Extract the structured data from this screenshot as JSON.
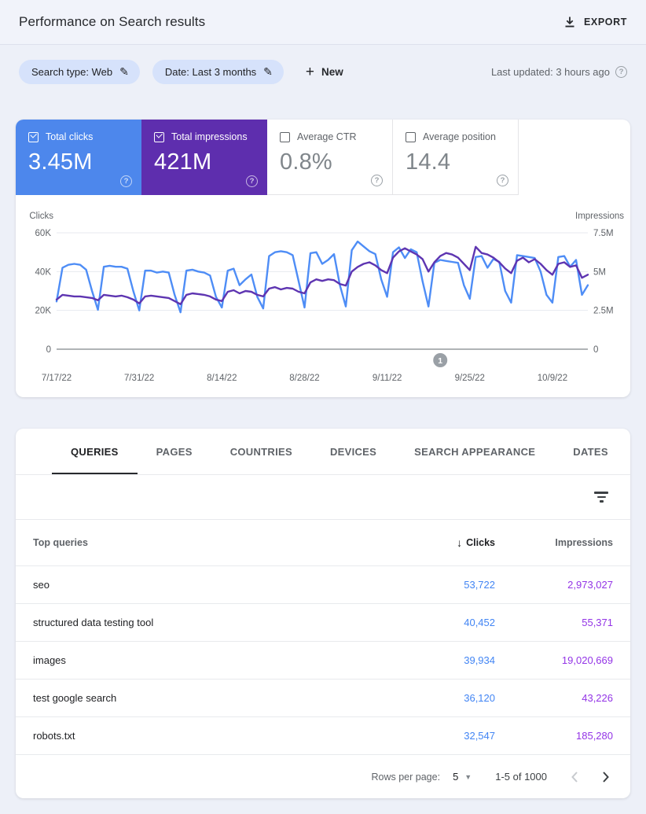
{
  "header": {
    "title": "Performance on Search results",
    "export_label": "EXPORT"
  },
  "filters": {
    "chips": [
      {
        "label": "Search type: Web"
      },
      {
        "label": "Date: Last 3 months"
      }
    ],
    "new_label": "New",
    "last_updated": "Last updated: 3 hours ago"
  },
  "icons": {
    "pencil": "✎",
    "plus": "+",
    "help": "?",
    "sort_desc": "↓",
    "dropdown_caret": "▼"
  },
  "metrics": {
    "cards": [
      {
        "label": "Total clicks",
        "value": "3.45M",
        "checked": "true",
        "color": "#4d87ec"
      },
      {
        "label": "Total impressions",
        "value": "421M",
        "checked": "true",
        "color": "#5e2eae"
      },
      {
        "label": "Average CTR",
        "value": "0.8%",
        "checked": "false",
        "color": "#ffffff"
      },
      {
        "label": "Average position",
        "value": "14.4",
        "checked": "false",
        "color": "#ffffff"
      }
    ]
  },
  "chart_data": {
    "type": "line",
    "start_date": "7/17/22",
    "x_tick_labels": [
      "7/17/22",
      "7/31/22",
      "8/14/22",
      "8/28/22",
      "9/11/22",
      "9/25/22",
      "10/9/22"
    ],
    "x_tick_days": [
      0,
      14,
      28,
      42,
      56,
      70,
      84
    ],
    "total_days": 91,
    "left_axis": {
      "label": "Clicks",
      "ticks": [
        "60K",
        "40K",
        "20K",
        "0"
      ],
      "max_value": 60000
    },
    "right_axis": {
      "label": "Impressions",
      "ticks": [
        "7.5M",
        "5M",
        "2.5M",
        "0"
      ],
      "max_value": 7.5,
      "unit": "millions"
    },
    "annotation": {
      "label": "1",
      "day": 65,
      "color": "#9aa0a6"
    },
    "grid": "horizontal only",
    "legend": "color-keyed to metric tiles",
    "series": [
      {
        "name": "Total clicks",
        "axis": "left",
        "color": "#4e8df6",
        "values_unit": "clicks/day",
        "values": [
          24600,
          42000,
          43500,
          44000,
          43500,
          41000,
          30000,
          20300,
          42500,
          43000,
          42500,
          42500,
          41500,
          30000,
          20000,
          40500,
          40500,
          39500,
          40000,
          39500,
          28000,
          19000,
          40500,
          41000,
          40000,
          39500,
          38000,
          27000,
          21500,
          40500,
          41500,
          33000,
          36000,
          38500,
          27000,
          21000,
          48000,
          50000,
          50500,
          50000,
          48500,
          35000,
          21500,
          49500,
          50000,
          44000,
          46000,
          49000,
          33000,
          22000,
          51000,
          55500,
          53000,
          50500,
          49000,
          36000,
          27000,
          50000,
          52500,
          47000,
          51500,
          50000,
          35000,
          22000,
          44500,
          46000,
          45500,
          45000,
          44500,
          33000,
          26000,
          47500,
          48000,
          42000,
          46500,
          45000,
          30000,
          24000,
          48500,
          48000,
          47500,
          47000,
          40000,
          28000,
          24000,
          47500,
          48000,
          42500,
          46000,
          28000,
          33000
        ]
      },
      {
        "name": "Total impressions",
        "axis": "right",
        "color": "#5e35b1",
        "values_unit": "millions of impressions/day",
        "values": [
          3.2,
          3.5,
          3.45,
          3.4,
          3.4,
          3.35,
          3.3,
          3.15,
          3.5,
          3.45,
          3.4,
          3.45,
          3.35,
          3.2,
          2.95,
          3.4,
          3.45,
          3.4,
          3.35,
          3.3,
          3.1,
          2.9,
          3.5,
          3.6,
          3.55,
          3.5,
          3.4,
          3.2,
          3.1,
          3.7,
          3.8,
          3.6,
          3.75,
          3.7,
          3.5,
          3.4,
          3.9,
          4.0,
          3.85,
          3.95,
          3.9,
          3.7,
          3.6,
          4.3,
          4.5,
          4.4,
          4.5,
          4.45,
          4.2,
          4.1,
          5.0,
          5.3,
          5.5,
          5.6,
          5.4,
          5.1,
          4.9,
          5.9,
          6.3,
          6.5,
          6.3,
          6.1,
          5.8,
          5.0,
          5.6,
          6.0,
          6.2,
          6.1,
          5.9,
          5.5,
          5.1,
          6.6,
          6.2,
          6.1,
          5.9,
          5.6,
          5.2,
          4.9,
          5.7,
          5.9,
          5.6,
          5.8,
          5.5,
          5.1,
          4.8,
          5.5,
          5.6,
          5.3,
          5.4,
          4.6,
          4.8
        ]
      }
    ]
  },
  "table": {
    "tabs": [
      {
        "label": "QUERIES"
      },
      {
        "label": "PAGES"
      },
      {
        "label": "COUNTRIES"
      },
      {
        "label": "DEVICES"
      },
      {
        "label": "SEARCH APPEARANCE"
      },
      {
        "label": "DATES"
      }
    ],
    "active_tab": "QUERIES",
    "header": {
      "query": "Top queries",
      "clicks": "Clicks",
      "impressions": "Impressions"
    },
    "sorted_by": "Clicks descending",
    "rows": [
      {
        "query": "seo",
        "clicks": "53,722",
        "impressions": "2,973,027"
      },
      {
        "query": "structured data testing tool",
        "clicks": "40,452",
        "impressions": "55,371"
      },
      {
        "query": "images",
        "clicks": "39,934",
        "impressions": "19,020,669"
      },
      {
        "query": "test google search",
        "clicks": "36,120",
        "impressions": "43,226"
      },
      {
        "query": "robots.txt",
        "clicks": "32,547",
        "impressions": "185,280"
      }
    ],
    "footer": {
      "rows_per_page_label": "Rows per page:",
      "rows_per_page_value": "5",
      "range": "1-5 of 1000"
    }
  },
  "colors": {
    "page_bg": "#edf0f8",
    "card_bg": "#ffffff",
    "clicks_accent": "#4d87ec",
    "impressions_accent": "#5e2eae",
    "clicks_line": "#4e8df6",
    "impressions_line": "#5e35b1",
    "table_clicks_text": "#4285f4",
    "table_impressions_text": "#9334e6",
    "muted_text": "#5f6368"
  }
}
